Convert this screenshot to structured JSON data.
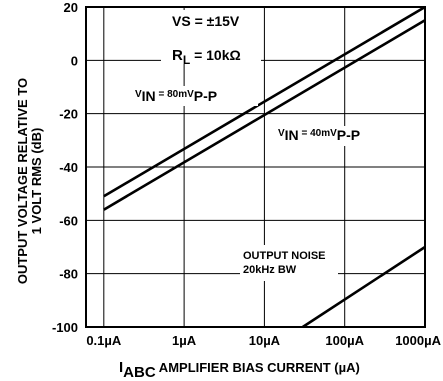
{
  "chart_data": {
    "type": "line",
    "x_scale": "log",
    "xlim": [
      0.06,
      1000
    ],
    "ylim": [
      -100,
      20
    ],
    "grid": true,
    "x_ticks": [
      0.1,
      1,
      10,
      100,
      1000
    ],
    "x_tick_labels": [
      "0.1µA",
      "1µA",
      "10µA",
      "100µA",
      "1000µA"
    ],
    "y_ticks": [
      20,
      0,
      -20,
      -40,
      -60,
      -80,
      -100
    ],
    "y_tick_labels": [
      "20",
      "0",
      "-20",
      "-40",
      "-60",
      "-80",
      "-100"
    ],
    "xlabel": {
      "symbol": "I",
      "subscript": "ABC",
      "text": " AMPLIFIER BIAS CURRENT (µA)"
    },
    "ylabel": {
      "line1": "OUTPUT VOLTAGE RELATIVE TO",
      "line2": "1 VOLT RMS (dB)"
    },
    "series": [
      {
        "x": [
          0.1,
          1000
        ],
        "y": [
          -51,
          20
        ]
      },
      {
        "x": [
          0.1,
          1000
        ],
        "y": [
          -56,
          15
        ]
      },
      {
        "x": [
          30,
          1000
        ],
        "y": [
          -100,
          -70
        ]
      }
    ],
    "annotations": {
      "vs": "VS = ±15V",
      "rl": {
        "main": "R",
        "sub": "L",
        "rest": " = 10kΩ"
      },
      "vin80": {
        "main": "V",
        "sub": "IN",
        "mid": " = 80mV",
        "end": "P-P"
      },
      "vin40": {
        "main": "V",
        "sub": "IN",
        "mid": " = 40mV",
        "end": "P-P"
      },
      "noise1": "OUTPUT NOISE",
      "noise2": "20kHz BW"
    }
  }
}
